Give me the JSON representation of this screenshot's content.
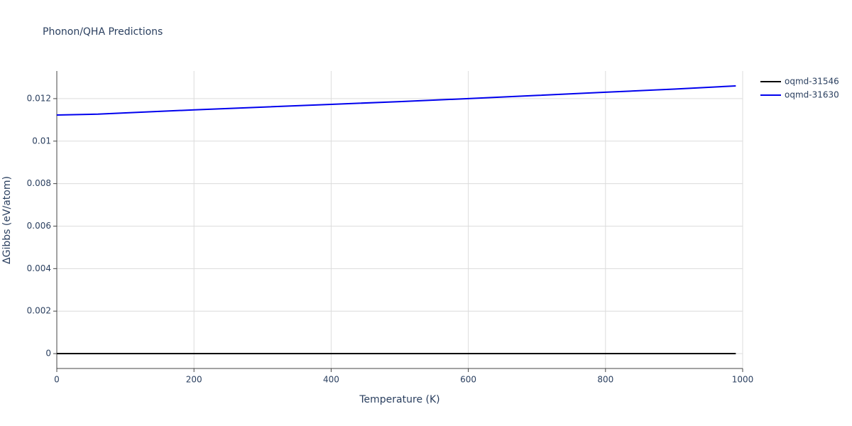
{
  "chart_data": {
    "type": "line",
    "title": "Phonon/QHA Predictions",
    "x_label": "Temperature (K)",
    "y_label": "ΔGibbs (eV/atom)",
    "x": [
      0,
      60,
      100,
      200,
      300,
      400,
      500,
      600,
      700,
      800,
      900,
      990
    ],
    "series": [
      {
        "name": "oqmd-31546",
        "color": "#000000",
        "values": [
          0,
          0,
          0,
          0,
          0,
          0,
          0,
          0,
          0,
          0,
          0,
          0
        ]
      },
      {
        "name": "oqmd-31630",
        "color": "#0000ee",
        "values": [
          0.01123,
          0.01127,
          0.01133,
          0.01147,
          0.0116,
          0.01173,
          0.01186,
          0.012,
          0.01215,
          0.0123,
          0.01245,
          0.0126
        ]
      }
    ],
    "xlim": [
      0,
      1000
    ],
    "xticks": [
      0,
      200,
      400,
      600,
      800,
      1000
    ],
    "ylim": [
      -0.0007,
      0.0133
    ],
    "yticks": [
      0,
      0.002,
      0.004,
      0.006,
      0.008,
      0.01,
      0.012
    ],
    "grid": true,
    "legend": "right"
  }
}
